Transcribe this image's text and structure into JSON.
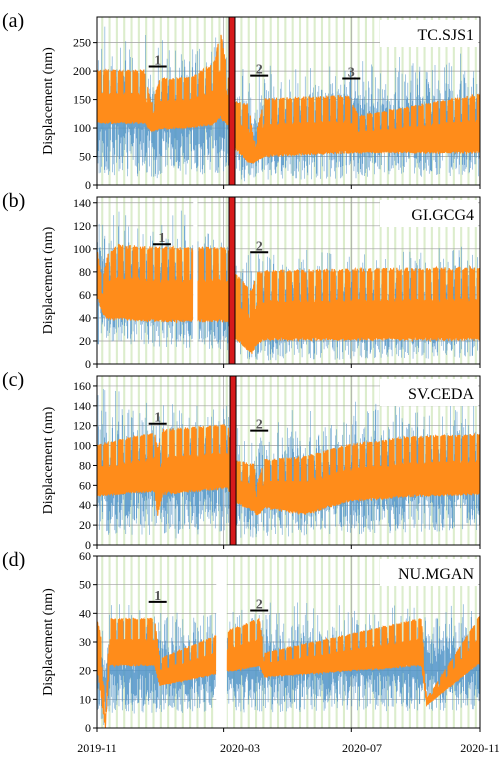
{
  "colors": {
    "raw_signal": "#4f93c8",
    "median_signal": "#ff8c1a",
    "lockdown_marker": "#d7191c",
    "weekend_shading": "#dcedcc",
    "grid": "#9e9e9e",
    "axis": "#000000"
  },
  "xaxis": {
    "tick_labels": [
      "2019-11",
      "2020-03",
      "2020-07",
      "2020-11"
    ],
    "tick_values": [
      0,
      121,
      243,
      366
    ]
  },
  "chart_data": [
    {
      "type": "line",
      "panel_label": "(a)",
      "station": "TC.SJS1",
      "ylabel": "Displacement (nm)",
      "ylim": [
        0,
        295
      ],
      "yticks": [
        0,
        50,
        100,
        150,
        200,
        250
      ],
      "lockdown_day": 129,
      "gaps": [],
      "annotations": [
        {
          "label": "1",
          "day": 58,
          "value": 208
        },
        {
          "label": "2",
          "day": 155,
          "value": 192
        },
        {
          "label": "3",
          "day": 243,
          "value": 187
        }
      ],
      "series": [
        {
          "role": "raw",
          "style": "blue band",
          "x": [
            0,
            45,
            52,
            60,
            90,
            125,
            130,
            145,
            150,
            160,
            240,
            250,
            366
          ],
          "low": [
            15,
            15,
            10,
            12,
            18,
            20,
            8,
            5,
            10,
            8,
            10,
            12,
            15
          ],
          "high": [
            285,
            270,
            260,
            265,
            275,
            280,
            240,
            200,
            190,
            230,
            245,
            235,
            250
          ]
        },
        {
          "role": "median",
          "style": "orange line",
          "x": [
            0,
            45,
            52,
            60,
            90,
            112,
            118,
            125,
            130,
            145,
            150,
            160,
            240,
            250,
            366
          ],
          "peak": [
            200,
            200,
            140,
            185,
            188,
            212,
            270,
            195,
            145,
            140,
            72,
            150,
            155,
            120,
            158
          ],
          "trough": [
            110,
            110,
            95,
            100,
            102,
            108,
            120,
            105,
            70,
            40,
            40,
            52,
            58,
            58,
            58
          ]
        }
      ]
    },
    {
      "type": "line",
      "panel_label": "(b)",
      "station": "GI.GCG4",
      "ylabel": "Displacement (nm)",
      "ylim": [
        0,
        145
      ],
      "yticks": [
        0,
        20,
        40,
        60,
        80,
        100,
        120,
        140
      ],
      "lockdown_day": 129,
      "gaps": [
        [
          92,
          96
        ]
      ],
      "annotations": [
        {
          "label": "1",
          "day": 62,
          "value": 104
        },
        {
          "label": "2",
          "day": 155,
          "value": 97
        }
      ],
      "series": [
        {
          "role": "raw",
          "style": "blue band",
          "x": [
            0,
            60,
            125,
            130,
            150,
            160,
            366
          ],
          "low": [
            15,
            15,
            12,
            2,
            2,
            3,
            5
          ],
          "high": [
            140,
            135,
            135,
            115,
            100,
            105,
            110
          ]
        },
        {
          "role": "median",
          "style": "orange line",
          "x": [
            0,
            5,
            10,
            20,
            60,
            125,
            130,
            148,
            153,
            160,
            366
          ],
          "peak": [
            100,
            70,
            95,
            102,
            100,
            100,
            80,
            62,
            78,
            80,
            83
          ],
          "trough": [
            60,
            45,
            40,
            40,
            38,
            38,
            25,
            10,
            18,
            22,
            22
          ]
        }
      ]
    },
    {
      "type": "line",
      "panel_label": "(c)",
      "station": "SV.CEDA",
      "ylabel": "Displacement (nm)",
      "ylim": [
        0,
        170
      ],
      "yticks": [
        0,
        20,
        40,
        60,
        80,
        100,
        120,
        140,
        160
      ],
      "lockdown_day": 130,
      "gaps": [],
      "annotations": [
        {
          "label": "1",
          "day": 58,
          "value": 122
        },
        {
          "label": "2",
          "day": 155,
          "value": 115
        }
      ],
      "series": [
        {
          "role": "raw",
          "style": "blue band",
          "x": [
            0,
            58,
            63,
            125,
            130,
            150,
            160,
            240,
            366
          ],
          "low": [
            10,
            10,
            5,
            12,
            8,
            5,
            8,
            10,
            15
          ],
          "high": [
            160,
            165,
            150,
            168,
            130,
            120,
            135,
            150,
            160
          ]
        },
        {
          "role": "median",
          "style": "orange line",
          "x": [
            0,
            55,
            58,
            63,
            125,
            130,
            150,
            153,
            160,
            200,
            240,
            300,
            366
          ],
          "peak": [
            100,
            112,
            95,
            115,
            120,
            85,
            80,
            60,
            85,
            88,
            100,
            108,
            110
          ],
          "trough": [
            50,
            55,
            30,
            52,
            58,
            45,
            35,
            30,
            38,
            32,
            45,
            50,
            52
          ]
        }
      ]
    },
    {
      "type": "line",
      "panel_label": "(d)",
      "station": "NU.MGAN",
      "ylabel": "Displacement (nm)",
      "ylim": [
        0,
        60
      ],
      "yticks": [
        0,
        10,
        20,
        30,
        40,
        50,
        60
      ],
      "lockdown_day": null,
      "gaps": [
        [
          114,
          124
        ]
      ],
      "annotations": [
        {
          "label": "1",
          "day": 58,
          "value": 44
        },
        {
          "label": "2",
          "day": 155,
          "value": 41
        }
      ],
      "series": [
        {
          "role": "raw",
          "style": "blue band",
          "x": [
            0,
            5,
            8,
            12,
            366
          ],
          "low": [
            5,
            2,
            0,
            5,
            6
          ],
          "high": [
            45,
            40,
            30,
            45,
            46
          ]
        },
        {
          "role": "median",
          "style": "orange line",
          "x": [
            0,
            5,
            8,
            12,
            55,
            60,
            155,
            160,
            310,
            315,
            366
          ],
          "peak": [
            38,
            30,
            0,
            38,
            38,
            24,
            38,
            26,
            38,
            10,
            39
          ],
          "trough": [
            22,
            8,
            0,
            22,
            22,
            15,
            22,
            18,
            22,
            8,
            23
          ]
        }
      ]
    }
  ]
}
